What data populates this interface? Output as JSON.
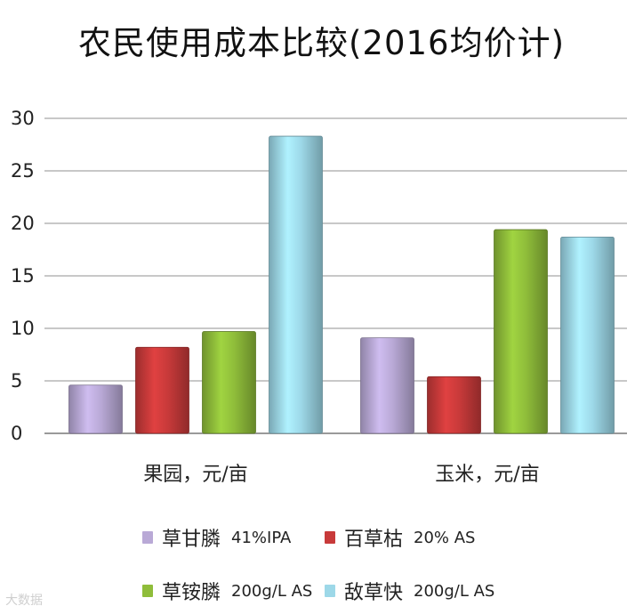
{
  "title": "农民使用成本比较(2016均价计)",
  "watermark": "大数据",
  "chart_data": {
    "type": "bar",
    "title": "农民使用成本比较(2016均价计)",
    "categories": [
      "果园，元/亩",
      "玉米，元/亩"
    ],
    "ylim": [
      0,
      30
    ],
    "yticks": [
      0,
      5,
      10,
      15,
      20,
      25,
      30
    ],
    "grid": true,
    "legend_position": "bottom",
    "series": [
      {
        "name": "草甘膦",
        "spec": "41%IPA",
        "color": "#b9a9d6",
        "values": [
          4.6,
          9.1
        ]
      },
      {
        "name": "百草枯",
        "spec": "20% AS",
        "color": "#c83a3a",
        "values": [
          8.2,
          5.4
        ]
      },
      {
        "name": "草铵膦",
        "spec": "200g/L AS",
        "color": "#8fbd3a",
        "values": [
          9.7,
          19.4
        ]
      },
      {
        "name": "敌草快",
        "spec": "200g/L AS",
        "color": "#9dd8e8",
        "values": [
          28.3,
          18.7
        ]
      }
    ]
  }
}
